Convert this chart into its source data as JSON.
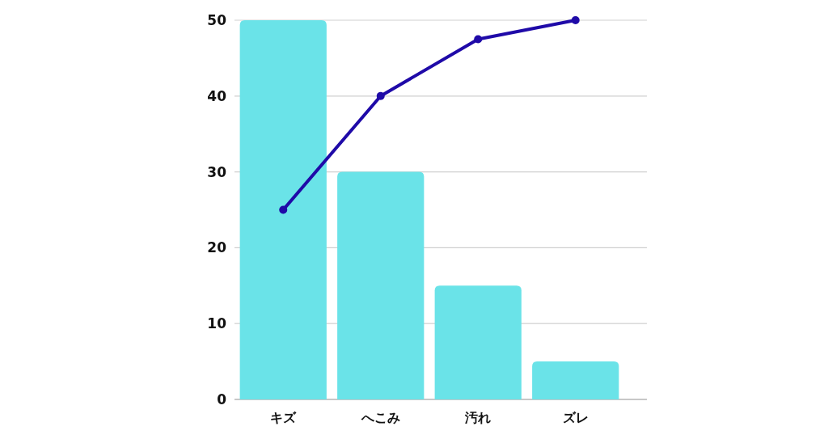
{
  "chart_data": {
    "type": "bar",
    "categories": [
      "キズ",
      "へこみ",
      "汚れ",
      "ズレ"
    ],
    "series": [
      {
        "color": "#6ae3e8",
        "values": [
          50,
          30,
          15,
          5
        ]
      },
      {
        "type": "line",
        "color": "#1f0aa8",
        "values": [
          25,
          40,
          47.5,
          50
        ],
        "marker": "circle"
      }
    ],
    "ylim": [
      0,
      50
    ],
    "yticks": [
      0,
      10,
      20,
      30,
      40,
      50
    ],
    "grid": "y"
  }
}
